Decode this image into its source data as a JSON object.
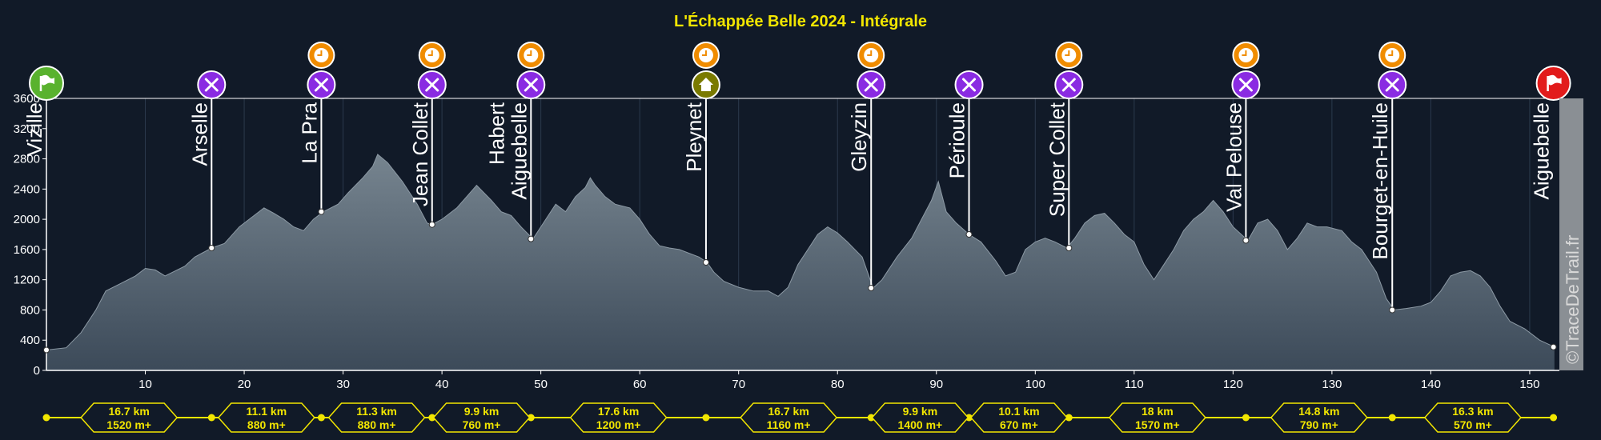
{
  "title": "L'Échappée Belle 2024 - Intégrale",
  "credit": "©TraceDeTrail.fr",
  "colors": {
    "background": "#111a28",
    "title": "#f2e600",
    "area_top": "#6f7e8b",
    "area_bottom": "#3e4d5c",
    "start_flag": "#59b22e",
    "finish_flag": "#e21b1b",
    "food": "#8a2be2",
    "clock": "#f08c00",
    "base": "#7a7a00",
    "segment_line": "#f2e600"
  },
  "chart_data": {
    "type": "area",
    "title": "L'Échappée Belle 2024 - Intégrale",
    "xlabel": "",
    "ylabel": "",
    "xlim": [
      0,
      153
    ],
    "ylim": [
      0,
      3600
    ],
    "x_ticks": [
      10,
      20,
      30,
      40,
      50,
      60,
      70,
      80,
      90,
      100,
      110,
      120,
      130,
      140,
      150
    ],
    "y_ticks": [
      0,
      400,
      800,
      1200,
      1600,
      2000,
      2400,
      2800,
      3200,
      3600
    ],
    "grid": "vertical",
    "profile": [
      [
        0.0,
        270
      ],
      [
        2.0,
        300
      ],
      [
        3.5,
        500
      ],
      [
        5.0,
        800
      ],
      [
        6.0,
        1050
      ],
      [
        7.5,
        1150
      ],
      [
        9.0,
        1250
      ],
      [
        10.0,
        1350
      ],
      [
        11.0,
        1330
      ],
      [
        12.0,
        1250
      ],
      [
        14.0,
        1380
      ],
      [
        15.0,
        1500
      ],
      [
        16.7,
        1620
      ],
      [
        18.0,
        1680
      ],
      [
        19.5,
        1900
      ],
      [
        21.0,
        2050
      ],
      [
        22.0,
        2150
      ],
      [
        23.0,
        2080
      ],
      [
        24.0,
        2000
      ],
      [
        25.0,
        1900
      ],
      [
        26.0,
        1850
      ],
      [
        27.0,
        2000
      ],
      [
        28.0,
        2100
      ],
      [
        29.5,
        2200
      ],
      [
        30.5,
        2350
      ],
      [
        32.0,
        2550
      ],
      [
        33.0,
        2700
      ],
      [
        33.5,
        2860
      ],
      [
        34.5,
        2750
      ],
      [
        36.0,
        2500
      ],
      [
        37.5,
        2200
      ],
      [
        38.5,
        1950
      ],
      [
        39.0,
        1930
      ],
      [
        40.0,
        2000
      ],
      [
        41.5,
        2150
      ],
      [
        42.5,
        2300
      ],
      [
        43.5,
        2450
      ],
      [
        45.0,
        2250
      ],
      [
        46.0,
        2100
      ],
      [
        47.0,
        2050
      ],
      [
        48.0,
        1900
      ],
      [
        49.2,
        1740
      ],
      [
        50.0,
        1900
      ],
      [
        51.5,
        2200
      ],
      [
        52.5,
        2100
      ],
      [
        53.5,
        2300
      ],
      [
        54.5,
        2420
      ],
      [
        55.0,
        2550
      ],
      [
        55.5,
        2450
      ],
      [
        56.5,
        2300
      ],
      [
        57.5,
        2200
      ],
      [
        59.0,
        2150
      ],
      [
        60.0,
        2000
      ],
      [
        61.0,
        1800
      ],
      [
        62.0,
        1650
      ],
      [
        63.0,
        1620
      ],
      [
        64.0,
        1600
      ],
      [
        66.0,
        1500
      ],
      [
        66.8,
        1430
      ],
      [
        67.5,
        1300
      ],
      [
        68.5,
        1180
      ],
      [
        70.0,
        1100
      ],
      [
        71.5,
        1050
      ],
      [
        73.0,
        1050
      ],
      [
        74.0,
        980
      ],
      [
        75.0,
        1100
      ],
      [
        76.0,
        1400
      ],
      [
        77.0,
        1600
      ],
      [
        78.0,
        1800
      ],
      [
        79.0,
        1900
      ],
      [
        80.0,
        1820
      ],
      [
        81.0,
        1700
      ],
      [
        82.5,
        1500
      ],
      [
        83.6,
        1090
      ],
      [
        84.5,
        1200
      ],
      [
        86.0,
        1500
      ],
      [
        87.5,
        1750
      ],
      [
        88.5,
        2000
      ],
      [
        89.5,
        2250
      ],
      [
        90.2,
        2500
      ],
      [
        91.0,
        2100
      ],
      [
        92.0,
        1950
      ],
      [
        93.3,
        1800
      ],
      [
        94.5,
        1700
      ],
      [
        96.0,
        1450
      ],
      [
        97.0,
        1250
      ],
      [
        98.0,
        1300
      ],
      [
        99.0,
        1600
      ],
      [
        100.0,
        1700
      ],
      [
        101.0,
        1750
      ],
      [
        102.0,
        1700
      ],
      [
        103.2,
        1620
      ],
      [
        104.0,
        1750
      ],
      [
        105.0,
        1950
      ],
      [
        106.0,
        2050
      ],
      [
        107.0,
        2080
      ],
      [
        108.0,
        1950
      ],
      [
        109.0,
        1800
      ],
      [
        110.0,
        1700
      ],
      [
        111.0,
        1400
      ],
      [
        112.0,
        1200
      ],
      [
        113.0,
        1400
      ],
      [
        114.0,
        1600
      ],
      [
        115.0,
        1850
      ],
      [
        116.0,
        2000
      ],
      [
        117.0,
        2100
      ],
      [
        118.0,
        2250
      ],
      [
        119.0,
        2100
      ],
      [
        120.0,
        1900
      ],
      [
        121.5,
        1720
      ],
      [
        122.5,
        1950
      ],
      [
        123.5,
        2000
      ],
      [
        124.5,
        1850
      ],
      [
        125.5,
        1600
      ],
      [
        126.5,
        1750
      ],
      [
        127.5,
        1950
      ],
      [
        128.5,
        1900
      ],
      [
        129.5,
        1900
      ],
      [
        131.0,
        1850
      ],
      [
        132.0,
        1700
      ],
      [
        133.0,
        1600
      ],
      [
        134.5,
        1300
      ],
      [
        135.5,
        950
      ],
      [
        136.3,
        800
      ],
      [
        137.5,
        820
      ],
      [
        139.0,
        850
      ],
      [
        140.0,
        900
      ],
      [
        141.0,
        1050
      ],
      [
        142.0,
        1250
      ],
      [
        143.0,
        1300
      ],
      [
        144.0,
        1320
      ],
      [
        145.0,
        1250
      ],
      [
        146.0,
        1100
      ],
      [
        147.0,
        850
      ],
      [
        148.0,
        650
      ],
      [
        149.5,
        550
      ],
      [
        151.0,
        400
      ],
      [
        152.5,
        310
      ]
    ],
    "checkpoints": [
      {
        "name": "Vizille",
        "km": 0.0,
        "alt": 270,
        "icons": [
          "start-flag"
        ]
      },
      {
        "name": "Arselle",
        "km": 16.7,
        "alt": 1620,
        "icons": [
          "food"
        ]
      },
      {
        "name": "La Pra",
        "km": 27.8,
        "alt": 2100,
        "icons": [
          "clock",
          "food"
        ]
      },
      {
        "name": "Jean Collet",
        "km": 39.0,
        "alt": 1930,
        "icons": [
          "clock",
          "food"
        ]
      },
      {
        "name": "Habert\nAiguebelle",
        "km": 49.0,
        "alt": 1740,
        "icons": [
          "clock",
          "food"
        ]
      },
      {
        "name": "Pleynet",
        "km": 66.7,
        "alt": 1430,
        "icons": [
          "clock",
          "base"
        ]
      },
      {
        "name": "Gleyzin",
        "km": 83.4,
        "alt": 1090,
        "icons": [
          "clock",
          "food"
        ]
      },
      {
        "name": "Périoule",
        "km": 93.3,
        "alt": 1800,
        "icons": [
          "food"
        ]
      },
      {
        "name": "Super Collet",
        "km": 103.4,
        "alt": 1620,
        "icons": [
          "clock",
          "food"
        ]
      },
      {
        "name": "Val Pelouse",
        "km": 121.3,
        "alt": 1720,
        "icons": [
          "clock",
          "food"
        ]
      },
      {
        "name": "Bourget-en-Huile",
        "km": 136.1,
        "alt": 800,
        "icons": [
          "clock",
          "food"
        ]
      },
      {
        "name": "Aiguebelle",
        "km": 152.4,
        "alt": 310,
        "icons": [
          "finish-flag"
        ]
      }
    ],
    "segments": [
      {
        "dist": "16.7 km",
        "gain": "1520 m+"
      },
      {
        "dist": "11.1 km",
        "gain": "880 m+"
      },
      {
        "dist": "11.3 km",
        "gain": "880 m+"
      },
      {
        "dist": "9.9 km",
        "gain": "760 m+"
      },
      {
        "dist": "17.6 km",
        "gain": "1200 m+"
      },
      {
        "dist": "16.7 km",
        "gain": "1160 m+"
      },
      {
        "dist": "9.9 km",
        "gain": "1400 m+"
      },
      {
        "dist": "10.1 km",
        "gain": "670 m+"
      },
      {
        "dist": "18 km",
        "gain": "1570 m+"
      },
      {
        "dist": "14.8 km",
        "gain": "790 m+"
      },
      {
        "dist": "16.3 km",
        "gain": "570 m+"
      }
    ]
  }
}
